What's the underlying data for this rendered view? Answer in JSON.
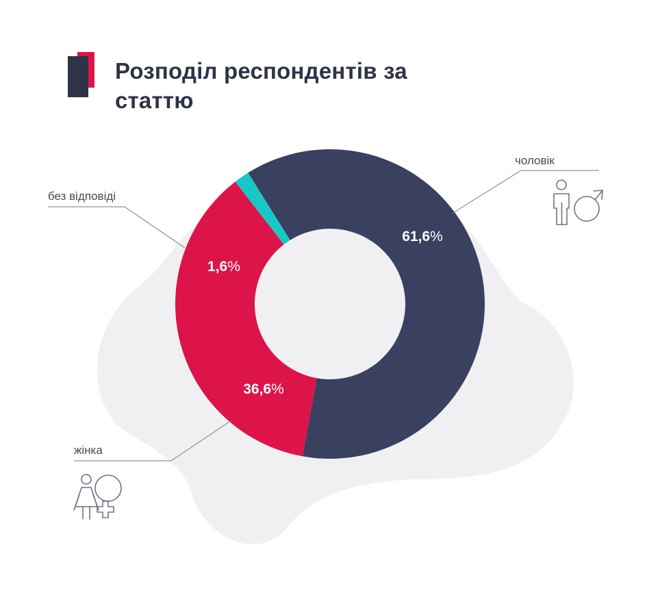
{
  "title": "Розподіл респондентів за статтю",
  "colors": {
    "title_text": "#2f3347",
    "accent_red": "#dd1449",
    "accent_dark": "#2f3347",
    "blob": "#f0f0f2",
    "leader_line": "#7a7a7a",
    "icon_stroke": "#6f7384"
  },
  "icons": {
    "male": "male-person-icon",
    "female": "female-person-icon"
  },
  "chart_data": {
    "type": "pie",
    "donut": true,
    "start_category": "чоловік",
    "direction": "clockwise",
    "categories": [
      "чоловік",
      "жінка",
      "без відповіді"
    ],
    "values": [
      61.6,
      36.6,
      1.6
    ],
    "value_labels": [
      "61,6",
      "36,6",
      "1,6"
    ],
    "unit": "%",
    "colors": [
      "#3a4060",
      "#dd1449",
      "#19c8c4"
    ]
  }
}
